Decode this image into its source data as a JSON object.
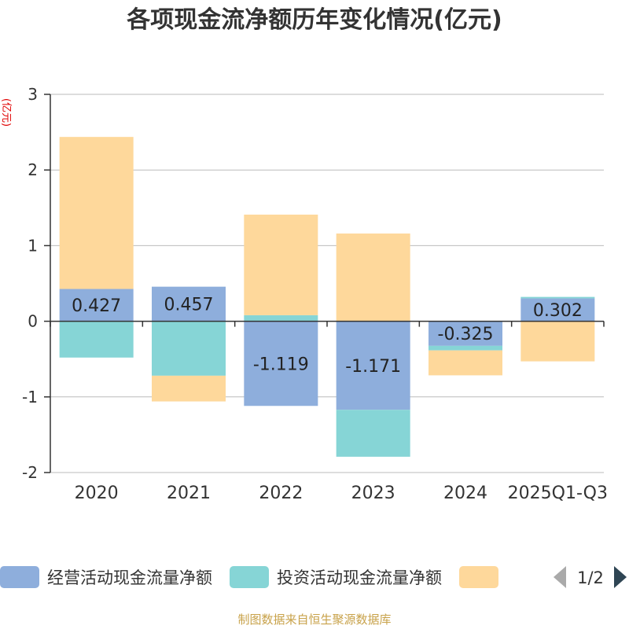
{
  "chart_data": {
    "type": "bar",
    "stacked": true,
    "title": "各项现金流净额历年变化情况(亿元)",
    "ylabel": "(亿元)",
    "ylim": [
      -2,
      3
    ],
    "yticks": [
      3,
      2,
      1,
      0,
      -1,
      -2
    ],
    "grid": true,
    "categories": [
      "2020",
      "2021",
      "2022",
      "2023",
      "2024",
      "2025Q1-Q3"
    ],
    "series": [
      {
        "name": "经营活动现金流量净额",
        "color": "#8eaedc",
        "values": [
          0.427,
          0.457,
          -1.119,
          -1.171,
          -0.325,
          0.302
        ],
        "show_labels": true,
        "label_texts": [
          "0.427",
          "0.457",
          "-1.119",
          "-1.171",
          "-0.325",
          "0.302"
        ]
      },
      {
        "name": "投资活动现金流量净额",
        "color": "#86d5d6",
        "values": [
          -0.48,
          -0.72,
          0.08,
          -0.62,
          -0.06,
          0.02
        ],
        "show_labels": false
      },
      {
        "name": "",
        "color": "#fed89b",
        "values": [
          2.01,
          -0.34,
          1.33,
          1.16,
          -0.33,
          -0.53
        ],
        "show_labels": false
      }
    ]
  },
  "legend": {
    "page": "1/2",
    "position": "bottom"
  },
  "colors": {
    "title": "#333333",
    "axis_label": "#e00000",
    "axis_text": "#333333",
    "gridline": "#bbbbbb",
    "footer": "#c8a24a",
    "pager_prev": "#aaaaaa",
    "pager_next": "#2f4554"
  },
  "footer": {
    "source_text": "制图数据来自恒生聚源数据库"
  }
}
